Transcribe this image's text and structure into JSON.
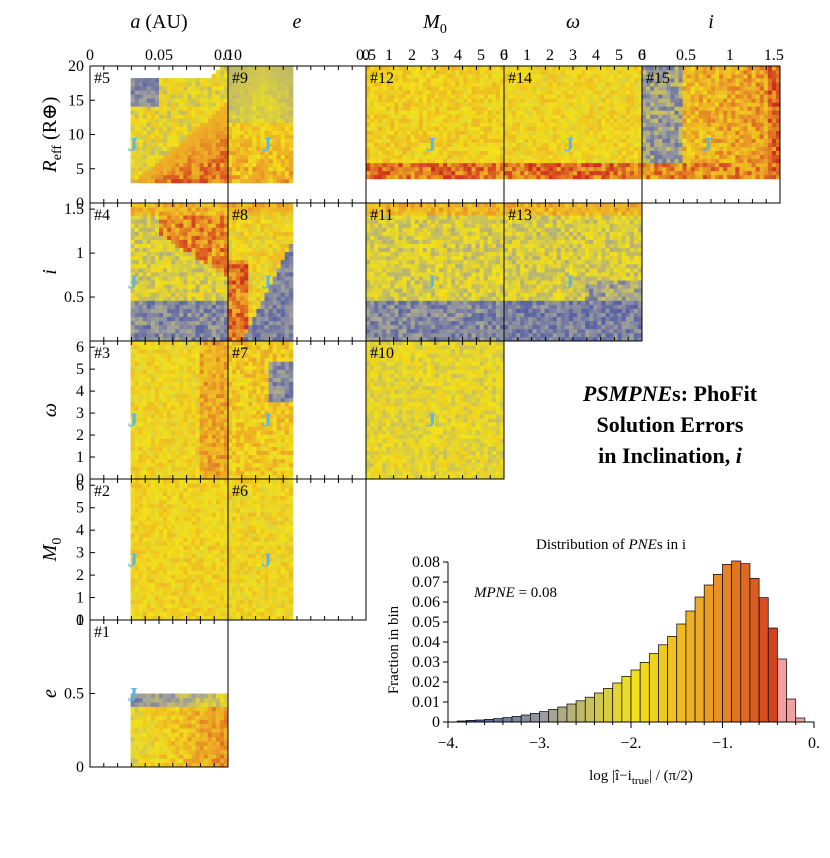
{
  "figure": {
    "title_line1_italic": "PSMPNE",
    "title_line1_rest": "s: PhoFit",
    "title_line2": "Solution Errors",
    "title_line3": "in Inclination, ",
    "title_line3_italic": "i"
  },
  "columns": [
    {
      "id": "a",
      "label": "a",
      "unit": " (AU)",
      "ticks": [
        "0",
        "0.05",
        "0.10"
      ]
    },
    {
      "id": "e",
      "label": "e",
      "unit": "",
      "ticks": [
        "0",
        "0.5"
      ]
    },
    {
      "id": "M0",
      "label": "M",
      "sub": "0",
      "unit": "",
      "ticks": [
        "0",
        "1",
        "2",
        "3",
        "4",
        "5",
        "6"
      ]
    },
    {
      "id": "omega",
      "label": "ω",
      "unit": "",
      "ticks": [
        "0",
        "1",
        "2",
        "3",
        "4",
        "5",
        "6"
      ]
    },
    {
      "id": "i",
      "label": "i",
      "unit": "",
      "ticks": [
        "0",
        "0.5",
        "1",
        "1.5"
      ]
    }
  ],
  "rows": [
    {
      "id": "Reff",
      "label": "R",
      "sub": "eff",
      "unit": " (R⊕)",
      "ticks": [
        "0",
        "5",
        "10",
        "15",
        "20"
      ]
    },
    {
      "id": "i",
      "label": "i",
      "unit": "",
      "ticks": [
        "0.5",
        "1",
        "1.5"
      ]
    },
    {
      "id": "omega",
      "label": "ω",
      "unit": "",
      "ticks": [
        "0",
        "1",
        "2",
        "3",
        "4",
        "5",
        "6"
      ]
    },
    {
      "id": "M0",
      "label": "M",
      "sub": "0",
      "unit": "",
      "ticks": [
        "0",
        "1",
        "2",
        "3",
        "4",
        "5",
        "6"
      ]
    },
    {
      "id": "e",
      "label": "e",
      "unit": "",
      "ticks": [
        "0",
        "0.5",
        "1"
      ]
    }
  ],
  "panels": [
    {
      "id": "#5",
      "row": 0,
      "col": 0
    },
    {
      "id": "#9",
      "row": 0,
      "col": 1
    },
    {
      "id": "#12",
      "row": 0,
      "col": 2
    },
    {
      "id": "#14",
      "row": 0,
      "col": 3
    },
    {
      "id": "#15",
      "row": 0,
      "col": 4
    },
    {
      "id": "#4",
      "row": 1,
      "col": 0
    },
    {
      "id": "#8",
      "row": 1,
      "col": 1
    },
    {
      "id": "#11",
      "row": 1,
      "col": 2
    },
    {
      "id": "#13",
      "row": 1,
      "col": 3
    },
    {
      "id": "#3",
      "row": 2,
      "col": 0
    },
    {
      "id": "#7",
      "row": 2,
      "col": 1
    },
    {
      "id": "#10",
      "row": 2,
      "col": 2
    },
    {
      "id": "#2",
      "row": 3,
      "col": 0
    },
    {
      "id": "#6",
      "row": 3,
      "col": 1
    },
    {
      "id": "#1",
      "row": 4,
      "col": 0
    }
  ],
  "marker": "J",
  "colors": {
    "blue": "#3f4fae",
    "grey": "#a6a6a0",
    "yellow": "#f2e21a",
    "orange": "#e89a25",
    "red": "#cc2a1c",
    "pink": "#f2a0a0",
    "jblue": "#5bb6e8"
  },
  "chart_data": {
    "type": "bar",
    "title_prefix": "Distribution of ",
    "title_italic": "PNE",
    "title_suffix": "s in i",
    "ylabel": "Fraction in bin",
    "xlabel": "log |î−i",
    "xlabel_sub": "true",
    "xlabel_suffix": "| / (π/2)",
    "annotation_italic": "MPNE",
    "annotation_rest": " = 0.08",
    "xlim": [
      -4.0,
      0.0
    ],
    "ylim": [
      0,
      0.08
    ],
    "xticks": [
      "-4.",
      "-3.",
      "-2.",
      "-1.",
      "0."
    ],
    "yticks": [
      "0",
      "0.01",
      "0.02",
      "0.03",
      "0.04",
      "0.05",
      "0.06",
      "0.07",
      "0.08"
    ],
    "bin_width": 0.1,
    "bin_left_edges": [
      -3.9,
      -3.8,
      -3.7,
      -3.6,
      -3.5,
      -3.4,
      -3.3,
      -3.2,
      -3.1,
      -3.0,
      -2.9,
      -2.8,
      -2.7,
      -2.6,
      -2.5,
      -2.4,
      -2.3,
      -2.2,
      -2.1,
      -2.0,
      -1.9,
      -1.8,
      -1.7,
      -1.6,
      -1.5,
      -1.4,
      -1.3,
      -1.2,
      -1.1,
      -1.0,
      -0.9,
      -0.8,
      -0.7,
      -0.6,
      -0.5,
      -0.4,
      -0.3,
      -0.2
    ],
    "values": [
      0.0005,
      0.0008,
      0.001,
      0.0013,
      0.0017,
      0.0022,
      0.0028,
      0.0035,
      0.0043,
      0.0052,
      0.0063,
      0.0075,
      0.009,
      0.0106,
      0.0124,
      0.0145,
      0.0168,
      0.0195,
      0.0228,
      0.026,
      0.0298,
      0.0342,
      0.0386,
      0.0428,
      0.049,
      0.0555,
      0.0625,
      0.0685,
      0.0738,
      0.0788,
      0.0805,
      0.0792,
      0.0718,
      0.0622,
      0.047,
      0.0315,
      0.0115,
      0.002
    ]
  }
}
